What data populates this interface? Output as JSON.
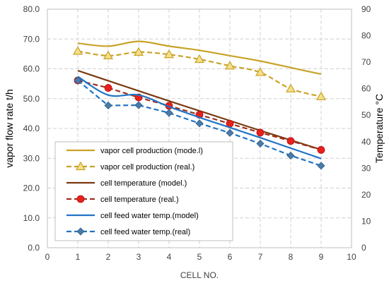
{
  "chart_data": {
    "type": "line",
    "xlabel": "CELL NO.",
    "ylabel_left": "vapor flow rate t/h",
    "ylabel_right": "Temperature °C",
    "xlim": [
      0,
      10
    ],
    "ylim_left": [
      0,
      80
    ],
    "ylim_right": [
      0,
      90
    ],
    "x_ticks": [
      "0",
      "1",
      "2",
      "3",
      "4",
      "5",
      "6",
      "7",
      "8",
      "9",
      "10"
    ],
    "y_left_ticks": [
      "0.0",
      "10.0",
      "20.0",
      "30.0",
      "40.0",
      "50.0",
      "60.0",
      "70.0",
      "80.0"
    ],
    "y_right_ticks": [
      "0",
      "10",
      "20",
      "30",
      "40",
      "50",
      "60",
      "70",
      "80",
      "90"
    ],
    "grid": "dashed",
    "legend_position": "lower-left",
    "series": [
      {
        "name": "vapor cell production (mode.l)",
        "axis": "left",
        "color": "#c9a227",
        "style": "solid",
        "smooth": true,
        "marker": "none",
        "x": [
          1,
          2,
          3,
          4,
          5,
          6,
          7,
          8,
          9
        ],
        "values": [
          68.6,
          67.6,
          69.2,
          67.6,
          66.2,
          64.4,
          62.6,
          60.4,
          58.2
        ]
      },
      {
        "name": "vapor cell production (real.)",
        "axis": "left",
        "color": "#c9a227",
        "style": "dashed",
        "smooth": true,
        "marker": "triangle",
        "x": [
          1,
          2,
          3,
          4,
          5,
          6,
          7,
          8,
          9
        ],
        "values": [
          65.9,
          64.4,
          65.6,
          64.8,
          63.2,
          61.0,
          58.8,
          53.3,
          50.7
        ]
      },
      {
        "name": "cell temperature (model.)",
        "axis": "left",
        "color": "#7b3a10",
        "style": "solid",
        "smooth": false,
        "marker": "none",
        "x": [
          1,
          2,
          3,
          4,
          5,
          6,
          7,
          8,
          9
        ],
        "values": [
          59.4,
          56.0,
          52.6,
          49.2,
          45.9,
          42.6,
          39.3,
          36.1,
          32.9
        ]
      },
      {
        "name": "cell temperature (real.)",
        "axis": "left",
        "color": "#a0301e",
        "marker_color": "#e8201c",
        "style": "dashed",
        "smooth": false,
        "marker": "circle",
        "x": [
          1,
          2,
          3,
          4,
          5,
          6,
          7,
          8,
          9
        ],
        "values": [
          56.1,
          53.6,
          50.4,
          47.6,
          44.6,
          41.6,
          38.6,
          35.8,
          32.8
        ]
      },
      {
        "name": "cell feed water temp.(model)",
        "axis": "left",
        "color": "#2174c4",
        "style": "solid",
        "smooth": true,
        "marker": "none",
        "x": [
          1,
          2,
          3,
          4,
          5,
          6,
          7,
          8,
          9
        ],
        "values": [
          57.4,
          51.2,
          51.2,
          47.3,
          43.7,
          40.3,
          36.9,
          33.4,
          29.9
        ]
      },
      {
        "name": "cell feed water temp.(real)",
        "axis": "left",
        "color": "#2174c4",
        "marker_color": "#4a7ba8",
        "style": "dashed",
        "smooth": false,
        "marker": "diamond",
        "x": [
          1,
          2,
          3,
          4,
          5,
          6,
          7,
          8,
          9
        ],
        "values": [
          56.1,
          47.7,
          47.8,
          45.2,
          41.7,
          38.5,
          34.9,
          30.9,
          27.5
        ]
      }
    ]
  }
}
